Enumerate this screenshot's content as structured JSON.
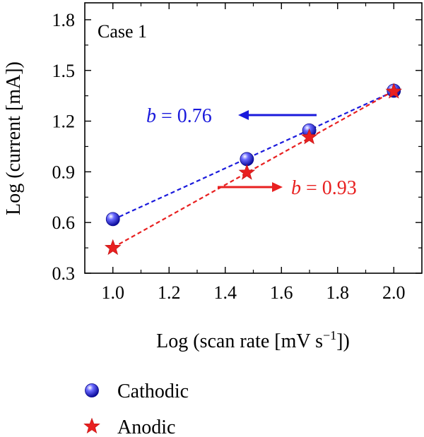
{
  "chart_data": {
    "type": "scatter",
    "panel_label": "Case 1",
    "xlabel": "Log (scan rate [mV s",
    "xlabel_sup": "−1",
    "xlabel_tail": "])",
    "ylabel": "Log (current [mA])",
    "xlim": [
      0.9,
      2.1
    ],
    "ylim": [
      0.3,
      1.9
    ],
    "xticks": [
      "1.0",
      "1.2",
      "1.4",
      "1.6",
      "1.8",
      "2.0"
    ],
    "yticks": [
      "0.3",
      "0.6",
      "0.9",
      "1.2",
      "1.5",
      "1.8"
    ],
    "series": [
      {
        "name": "Cathodic",
        "color": "#1a1adc",
        "marker": "sphere",
        "x": [
          1.0,
          1.477,
          1.699,
          2.0
        ],
        "y": [
          0.62,
          0.975,
          1.145,
          1.38
        ],
        "fit": {
          "b_label": "b",
          "b_value": " = 0.76"
        }
      },
      {
        "name": "Anodic",
        "color": "#e82020",
        "marker": "star",
        "x": [
          1.0,
          1.477,
          1.699,
          2.0
        ],
        "y": [
          0.45,
          0.895,
          1.105,
          1.375
        ],
        "fit": {
          "b_label": "b",
          "b_value": " = 0.93"
        }
      }
    ]
  }
}
